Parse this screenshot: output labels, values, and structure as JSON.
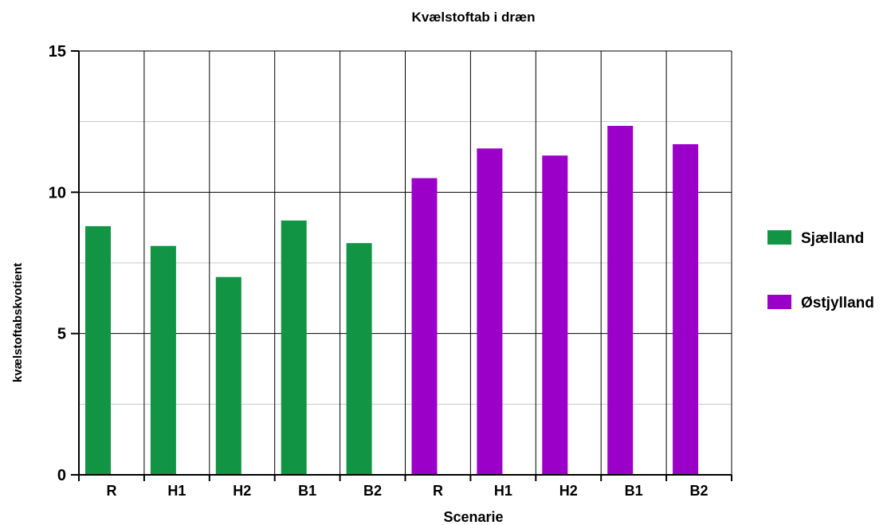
{
  "chart_data": {
    "type": "bar",
    "title": "Kvælstoftab i dræn",
    "xlabel": "Scenarie",
    "ylabel": "kvælstoftabskvotient",
    "ylim": [
      0,
      15
    ],
    "yticks": [
      "0",
      "5",
      "10",
      "15"
    ],
    "grid": true,
    "legend_position": "right",
    "categories": [
      "R",
      "H1",
      "H2",
      "B1",
      "B2",
      "R",
      "H1",
      "H2",
      "B1",
      "B2"
    ],
    "series": [
      {
        "name": "Sjælland",
        "color": "#119443",
        "values": [
          8.8,
          8.1,
          7.0,
          9.0,
          8.2,
          null,
          null,
          null,
          null,
          null
        ]
      },
      {
        "name": "Østjylland",
        "color": "#9b00c9",
        "values": [
          null,
          null,
          null,
          null,
          null,
          10.5,
          11.55,
          11.3,
          12.35,
          11.7
        ]
      }
    ]
  }
}
